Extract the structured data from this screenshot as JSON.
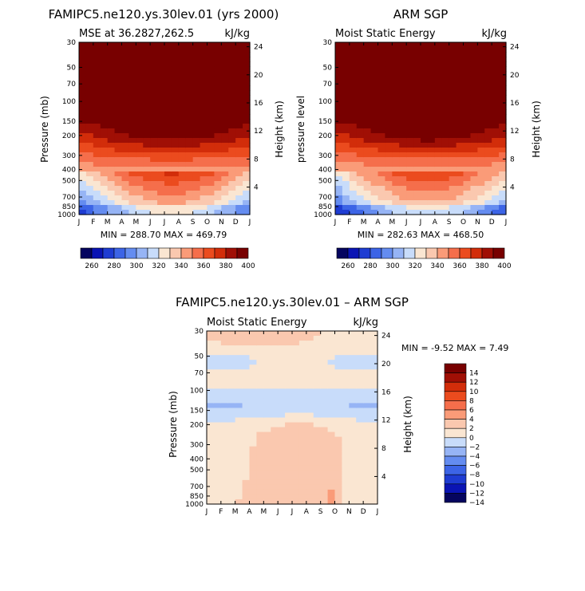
{
  "chart_data": [
    {
      "type": "heatmap",
      "title": "FAMIPC5.ne120.ys.30lev.01 (yrs 2000)",
      "subtitle_left": "MSE at 36.2827,262.5",
      "subtitle_right": "kJ/kg",
      "ylabel": "Pressure (mb)",
      "ylabel_right": "Height (km)",
      "stats": "MIN = 288.70  MAX = 469.79",
      "months": [
        "J",
        "F",
        "M",
        "A",
        "M",
        "J",
        "J",
        "A",
        "S",
        "O",
        "N",
        "D",
        "J"
      ],
      "pressure_ticks": [
        "30",
        "50",
        "70",
        "100",
        "150",
        "200",
        "300",
        "400",
        "500",
        "700",
        "850",
        "1000"
      ],
      "height_ticks": [
        "24",
        "20",
        "16",
        "12",
        "8",
        "4"
      ],
      "colorbar_labels": [
        "260",
        "280",
        "300",
        "320",
        "340",
        "360",
        "380",
        "400"
      ],
      "contour_levels": [
        260,
        270,
        280,
        290,
        300,
        310,
        320,
        330,
        340,
        350,
        360,
        370,
        380,
        390,
        400
      ]
    },
    {
      "type": "heatmap",
      "title": "ARM SGP",
      "subtitle_left": "Moist Static Energy",
      "subtitle_right": "kJ/kg",
      "ylabel": "pressure level",
      "ylabel_right": "Height (km)",
      "stats": "MIN = 282.63  MAX = 468.50",
      "months": [
        "J",
        "F",
        "M",
        "A",
        "M",
        "J",
        "J",
        "A",
        "S",
        "O",
        "N",
        "D",
        "J"
      ],
      "pressure_ticks": [
        "30",
        "50",
        "70",
        "100",
        "150",
        "200",
        "300",
        "400",
        "500",
        "700",
        "850",
        "1000"
      ],
      "height_ticks": [
        "24",
        "20",
        "16",
        "12",
        "8",
        "4"
      ],
      "colorbar_labels": [
        "260",
        "280",
        "300",
        "320",
        "340",
        "360",
        "380",
        "400"
      ],
      "contour_levels": [
        260,
        270,
        280,
        290,
        300,
        310,
        320,
        330,
        340,
        350,
        360,
        370,
        380,
        390,
        400
      ]
    },
    {
      "type": "heatmap",
      "title": "FAMIPC5.ne120.ys.30lev.01 – ARM SGP",
      "subtitle_left": "Moist Static Energy",
      "subtitle_right": "kJ/kg",
      "ylabel": "Pressure (mb)",
      "ylabel_right": "Height (km)",
      "stats": "MIN =   -9.52  MAX =    7.49",
      "months": [
        "J",
        "F",
        "M",
        "A",
        "M",
        "J",
        "J",
        "A",
        "S",
        "O",
        "N",
        "D",
        "J"
      ],
      "pressure_ticks": [
        "30",
        "50",
        "70",
        "100",
        "150",
        "200",
        "300",
        "400",
        "500",
        "700",
        "850",
        "1000"
      ],
      "height_ticks": [
        "24",
        "20",
        "16",
        "12",
        "8",
        "4"
      ],
      "colorbar_labels": [
        "14",
        "12",
        "10",
        "8",
        "6",
        "4",
        "2",
        "0",
        "−2",
        "−4",
        "−6",
        "−8",
        "−10",
        "−12",
        "−14"
      ],
      "contour_levels": [
        -14,
        -12,
        -10,
        -8,
        -6,
        -4,
        -2,
        0,
        2,
        4,
        6,
        8,
        10,
        12,
        14
      ]
    }
  ],
  "palette_warm": [
    "#05055f",
    "#0a14b4",
    "#1e3cd2",
    "#3c64e6",
    "#648cf0",
    "#96b4f5",
    "#c8dcfa",
    "#fae6d2",
    "#fac8af",
    "#fa9b78",
    "#f56e4b",
    "#eb4b1e",
    "#d22d0a",
    "#a00f05",
    "#780000"
  ],
  "palette_diff": [
    "#05055f",
    "#0a14b4",
    "#1e3cd2",
    "#3c64e6",
    "#648cf0",
    "#96b4f5",
    "#c8dcfa",
    "#fae6d2",
    "#fac8af",
    "#fa9b78",
    "#f56e4b",
    "#eb4b1e",
    "#d22d0a",
    "#a00f05",
    "#780000"
  ]
}
